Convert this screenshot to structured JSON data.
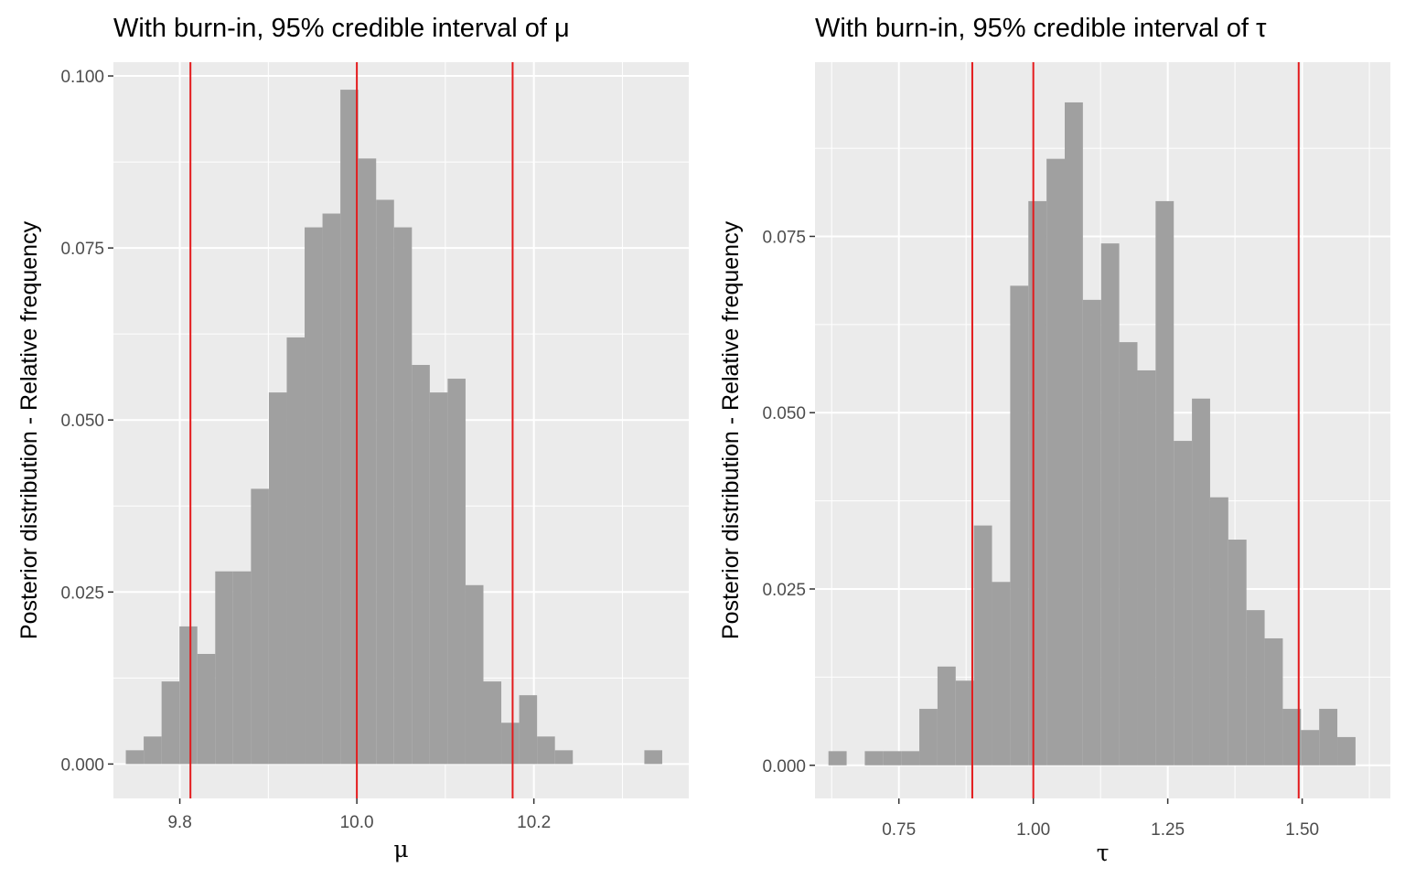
{
  "chart_data": [
    {
      "type": "bar",
      "title": "With burn-in, 95% credible interval of  μ",
      "xlabel": "μ",
      "ylabel": "Posterior distribution - Relative frequency",
      "xlim": [
        9.725,
        10.375
      ],
      "ylim": [
        -0.005,
        0.102
      ],
      "xticks": [
        "9.8",
        "10.0",
        "10.2"
      ],
      "yticks": [
        "0.000",
        "0.025",
        "0.050",
        "0.075",
        "0.100"
      ],
      "grid": true,
      "bin_width": 0.0202,
      "bin_edges_start": 9.739,
      "values": [
        0.002,
        0.004,
        0.012,
        0.02,
        0.016,
        0.028,
        0.028,
        0.04,
        0.054,
        0.062,
        0.078,
        0.08,
        0.098,
        0.088,
        0.082,
        0.078,
        0.058,
        0.054,
        0.056,
        0.026,
        0.012,
        0.006,
        0.01,
        0.004,
        0.002,
        0,
        0,
        0,
        0,
        0.002
      ],
      "bar_color": "#a0a0a0",
      "vlines": [
        9.812,
        10.0,
        10.176
      ],
      "vline_color": "#e31a1c"
    },
    {
      "type": "bar",
      "title": "With burn-in, 95% credible interval of  τ",
      "xlabel": "τ",
      "ylabel": "Posterior distribution - Relative frequency",
      "xlim": [
        0.594,
        1.664
      ],
      "ylim": [
        -0.0047,
        0.0997
      ],
      "xticks": [
        "0.75",
        "1.00",
        "1.25",
        "1.50"
      ],
      "yticks": [
        "0.000",
        "0.025",
        "0.050",
        "0.075"
      ],
      "grid": true,
      "bin_width": 0.0338,
      "bin_edges_start": 0.619,
      "values": [
        0.002,
        0,
        0.002,
        0.002,
        0.002,
        0.008,
        0.014,
        0.012,
        0.034,
        0.026,
        0.068,
        0.08,
        0.086,
        0.094,
        0.066,
        0.074,
        0.06,
        0.056,
        0.08,
        0.046,
        0.052,
        0.038,
        0.032,
        0.022,
        0.018,
        0.008,
        0.005,
        0.008,
        0.004
      ],
      "bar_color": "#a0a0a0",
      "vlines": [
        0.8865,
        1.0,
        1.4935
      ],
      "vline_color": "#e31a1c"
    }
  ]
}
